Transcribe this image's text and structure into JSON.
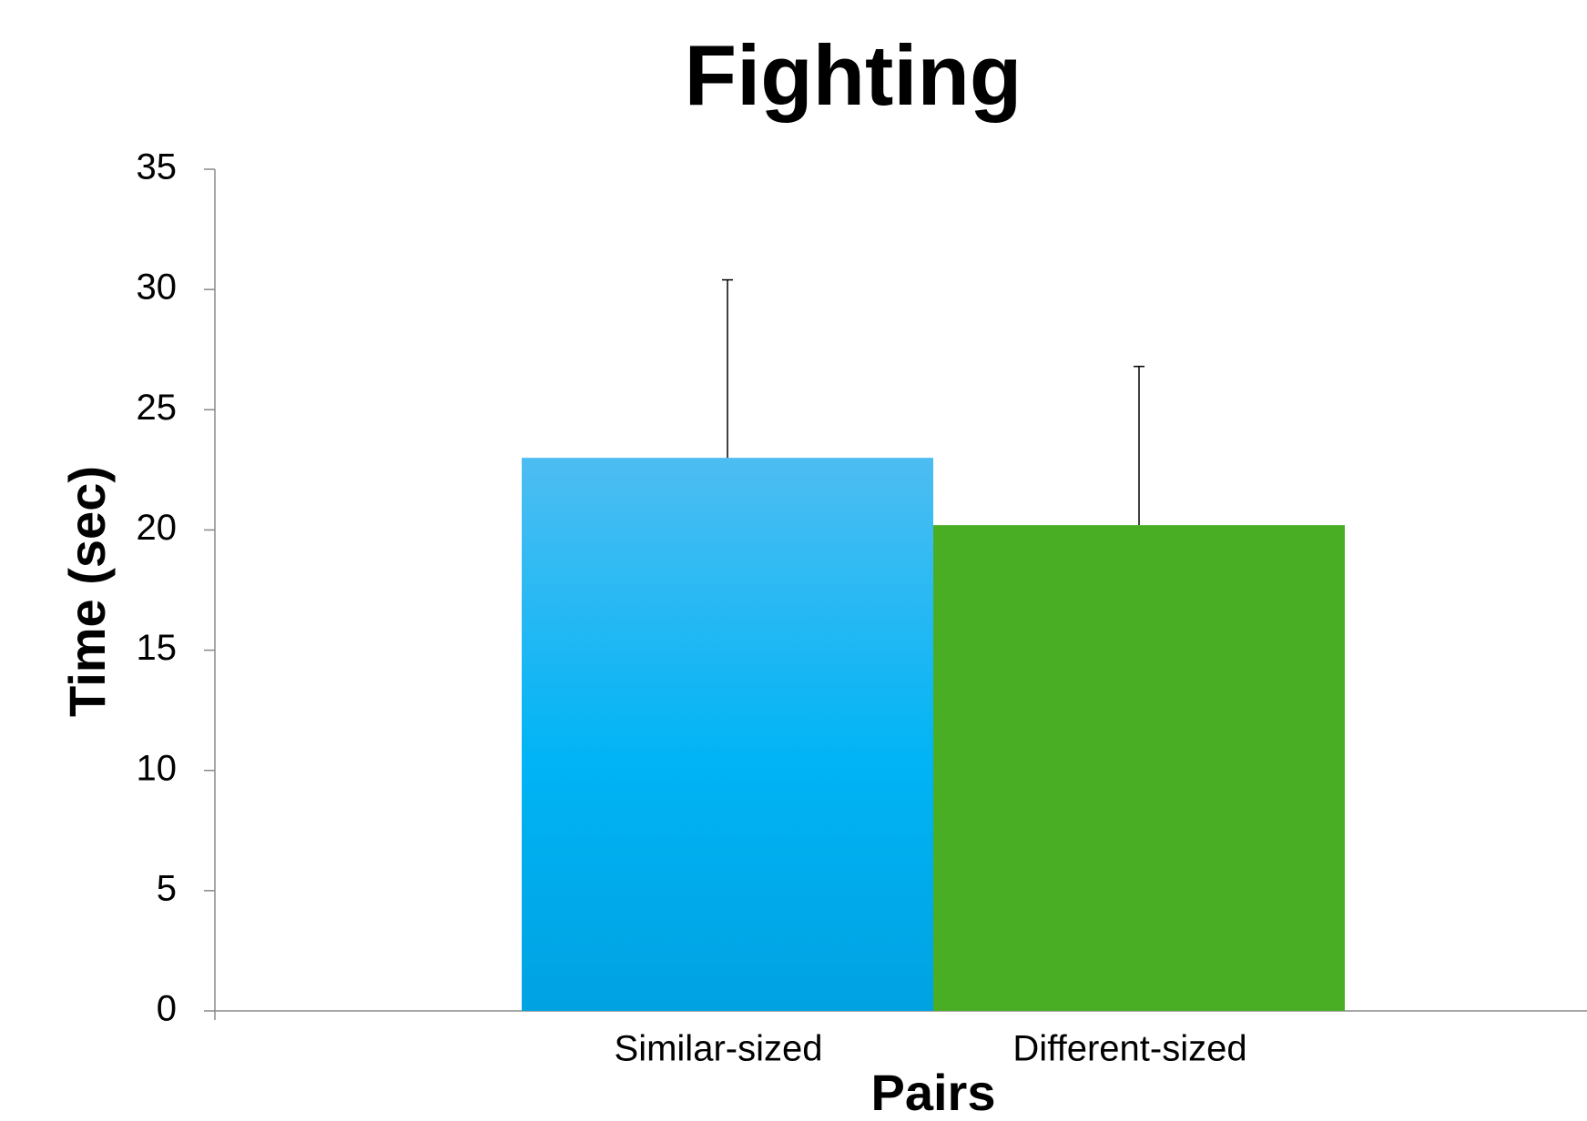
{
  "chart_data": {
    "type": "bar",
    "title": "Fighting",
    "x_label": "Pairs",
    "y_label": "Time (sec)",
    "categories": [
      "Similar-sized",
      "Different-sized"
    ],
    "values": [
      23,
      20.2
    ],
    "errors": [
      7.4,
      6.6
    ],
    "colors": [
      "#00b0f0",
      "#4aae25"
    ],
    "ylim": [
      0,
      35
    ],
    "yticks": [
      0,
      5,
      10,
      15,
      20,
      25,
      30,
      35
    ],
    "grid": false
  }
}
